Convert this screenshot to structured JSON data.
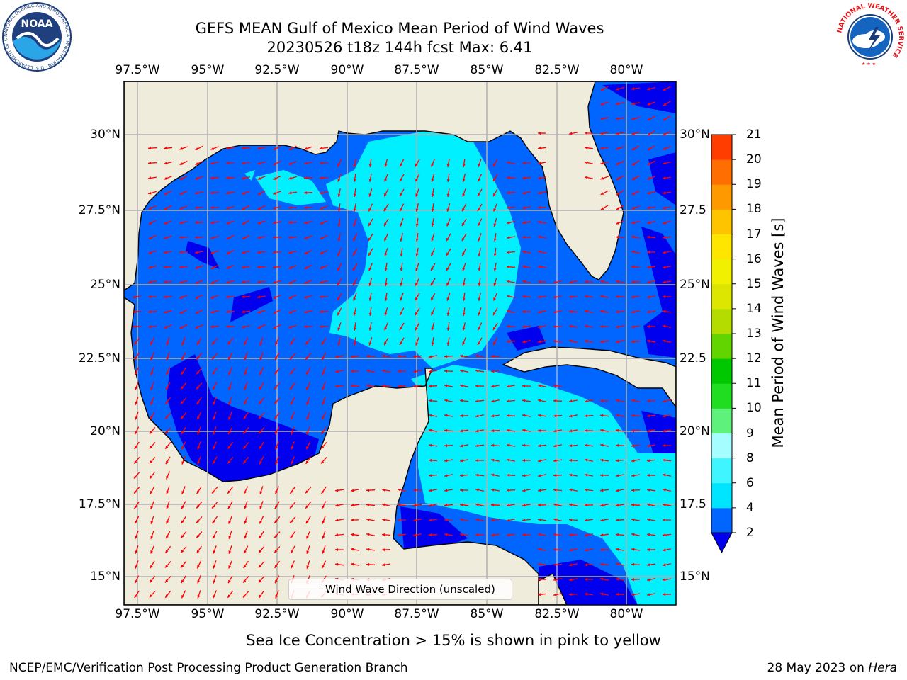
{
  "title": {
    "line1": "GEFS MEAN Gulf of Mexico Mean Period of Wind Waves",
    "line2": "20230526 t18z 144h fcst   Max: 6.41"
  },
  "axes": {
    "lon_ticks": [
      "97.5°W",
      "95°W",
      "92.5°W",
      "90°W",
      "87.5°W",
      "85°W",
      "82.5°W",
      "80°W"
    ],
    "lat_ticks_left": [
      "30°N",
      "27.5°N",
      "25°N",
      "22.5°N",
      "20°N",
      "17.5°N",
      "15°N"
    ],
    "lat_ticks_right": [
      "30°N",
      "27.5",
      "25°N",
      "22.5",
      "20°N",
      "17.5",
      "15°N"
    ]
  },
  "colorbar": {
    "label": "Mean Period of Wind Waves [s]",
    "ticks": [
      "2",
      "4",
      "6",
      "8",
      "9",
      "10",
      "11",
      "12",
      "13",
      "14",
      "15",
      "16",
      "17",
      "18",
      "19",
      "20",
      "21"
    ],
    "colors": [
      "#0066ff",
      "#00e5ff",
      "#3ff5ff",
      "#a5fdff",
      "#5ef27d",
      "#21dd21",
      "#00c800",
      "#62d400",
      "#b4dc00",
      "#dce600",
      "#f0f000",
      "#ffe600",
      "#ffc400",
      "#ff9900",
      "#ff6e00",
      "#ff3d00",
      "#ff0000"
    ],
    "under_color": "#0000ee"
  },
  "legend": {
    "label": "Wind Wave Direction (unscaled)"
  },
  "subtitle": "Sea Ice Concentration > 15% is shown in pink to yellow",
  "footer": {
    "left": "NCEP/EMC/Verification Post Processing Product Generation Branch",
    "right_date": "28 May 2023 on ",
    "right_host": "Hera"
  },
  "logos": {
    "noaa_text": "NOAA",
    "noaa_ring": "NATIONAL OCEANIC AND ATMOSPHERIC ADMINISTRATION · U.S. DEPARTMENT OF COMMERCE",
    "nws_ring": "NATIONAL WEATHER SERVICE"
  },
  "map": {
    "colors": {
      "land": "#efecdc",
      "low_band": "#0000ee",
      "band_2_4": "#0066ff",
      "band_4_6": "#00f0ff",
      "arrows": "#ff0000",
      "grid": "#b0b0b0",
      "coast": "#000000"
    }
  }
}
